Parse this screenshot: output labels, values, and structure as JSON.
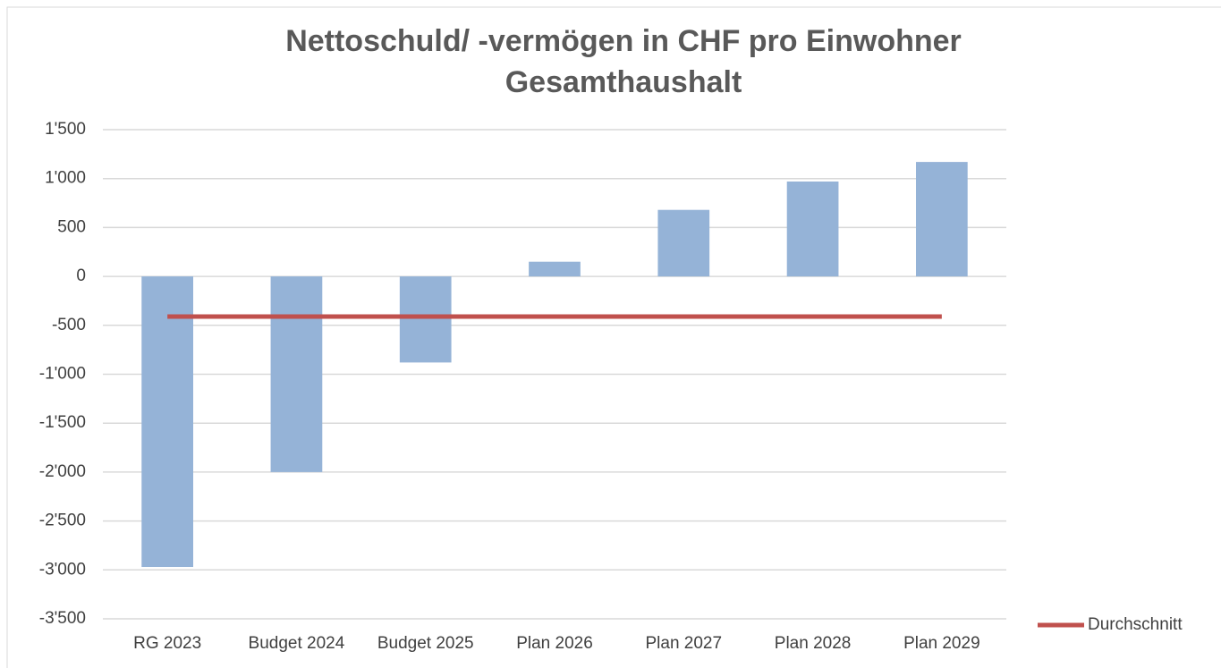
{
  "chart_data": {
    "type": "bar",
    "title": [
      "Nettoschuld/ -vermögen in CHF pro Einwohner",
      "Gesamthaushalt"
    ],
    "categories": [
      "RG 2023",
      "Budget 2024",
      "Budget 2025",
      "Plan 2026",
      "Plan 2027",
      "Plan 2028",
      "Plan 2029"
    ],
    "series": [
      {
        "type": "bar",
        "color": "#95b3d7",
        "values": [
          -2970,
          -2000,
          -880,
          150,
          680,
          970,
          1170
        ]
      },
      {
        "type": "line",
        "name": "Durchschnitt",
        "color": "#c0504d",
        "values": [
          -410,
          -410,
          -410,
          -410,
          -410,
          -410,
          -410
        ]
      }
    ],
    "ylim": [
      -3500,
      1500
    ],
    "yticks": [
      {
        "value": -3500,
        "label": "-3'500"
      },
      {
        "value": -3000,
        "label": "-3'000"
      },
      {
        "value": -2500,
        "label": "-2'500"
      },
      {
        "value": -2000,
        "label": "-2'000"
      },
      {
        "value": -1500,
        "label": "-1'500"
      },
      {
        "value": -1000,
        "label": "-1'000"
      },
      -500,
      0,
      500,
      {
        "value": 1000,
        "label": "1'000"
      },
      {
        "value": 1500,
        "label": "1'500"
      }
    ],
    "grid": true,
    "legend": "right"
  }
}
